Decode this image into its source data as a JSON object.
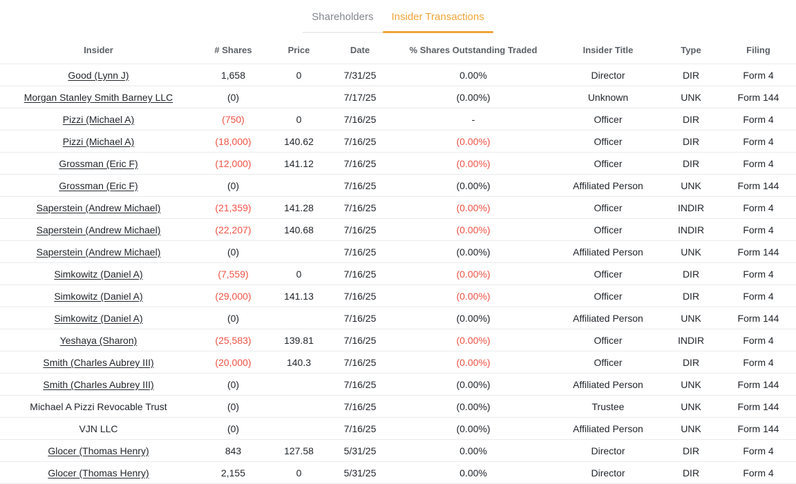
{
  "tabs": [
    {
      "label": "Shareholders",
      "active": false
    },
    {
      "label": "Insider Transactions",
      "active": true
    }
  ],
  "colors": {
    "accent": "#f0a437",
    "negative": "#ee5244"
  },
  "table": {
    "columns": [
      "Insider",
      "# Shares",
      "Price",
      "Date",
      "% Shares Outstanding Traded",
      "Insider Title",
      "Type",
      "Filing"
    ],
    "rows": [
      {
        "insider": "Good (Lynn J)",
        "link": true,
        "shares": "1,658",
        "shares_neg": false,
        "price": "0",
        "date": "7/31/25",
        "pct": "0.00%",
        "pct_neg": false,
        "title": "Director",
        "type": "DIR",
        "filing": "Form 4"
      },
      {
        "insider": "Morgan Stanley Smith Barney LLC",
        "link": true,
        "shares": "(0)",
        "shares_neg": false,
        "price": "",
        "date": "7/17/25",
        "pct": "(0.00%)",
        "pct_neg": false,
        "title": "Unknown",
        "type": "UNK",
        "filing": "Form 144"
      },
      {
        "insider": "Pizzi (Michael A)",
        "link": true,
        "shares": "(750)",
        "shares_neg": true,
        "price": "0",
        "date": "7/16/25",
        "pct": "-",
        "pct_neg": false,
        "title": "Officer",
        "type": "DIR",
        "filing": "Form 4"
      },
      {
        "insider": "Pizzi (Michael A)",
        "link": true,
        "shares": "(18,000)",
        "shares_neg": true,
        "price": "140.62",
        "date": "7/16/25",
        "pct": "(0.00%)",
        "pct_neg": true,
        "title": "Officer",
        "type": "DIR",
        "filing": "Form 4"
      },
      {
        "insider": "Grossman (Eric F)",
        "link": true,
        "shares": "(12,000)",
        "shares_neg": true,
        "price": "141.12",
        "date": "7/16/25",
        "pct": "(0.00%)",
        "pct_neg": true,
        "title": "Officer",
        "type": "DIR",
        "filing": "Form 4"
      },
      {
        "insider": "Grossman (Eric F)",
        "link": true,
        "shares": "(0)",
        "shares_neg": false,
        "price": "",
        "date": "7/16/25",
        "pct": "(0.00%)",
        "pct_neg": false,
        "title": "Affiliated Person",
        "type": "UNK",
        "filing": "Form 144"
      },
      {
        "insider": "Saperstein (Andrew Michael)",
        "link": true,
        "shares": "(21,359)",
        "shares_neg": true,
        "price": "141.28",
        "date": "7/16/25",
        "pct": "(0.00%)",
        "pct_neg": true,
        "title": "Officer",
        "type": "INDIR",
        "filing": "Form 4"
      },
      {
        "insider": "Saperstein (Andrew Michael)",
        "link": true,
        "shares": "(22,207)",
        "shares_neg": true,
        "price": "140.68",
        "date": "7/16/25",
        "pct": "(0.00%)",
        "pct_neg": true,
        "title": "Officer",
        "type": "INDIR",
        "filing": "Form 4"
      },
      {
        "insider": "Saperstein (Andrew Michael)",
        "link": true,
        "shares": "(0)",
        "shares_neg": false,
        "price": "",
        "date": "7/16/25",
        "pct": "(0.00%)",
        "pct_neg": false,
        "title": "Affiliated Person",
        "type": "UNK",
        "filing": "Form 144"
      },
      {
        "insider": "Simkowitz (Daniel A)",
        "link": true,
        "shares": "(7,559)",
        "shares_neg": true,
        "price": "0",
        "date": "7/16/25",
        "pct": "(0.00%)",
        "pct_neg": true,
        "title": "Officer",
        "type": "DIR",
        "filing": "Form 4"
      },
      {
        "insider": "Simkowitz (Daniel A)",
        "link": true,
        "shares": "(29,000)",
        "shares_neg": true,
        "price": "141.13",
        "date": "7/16/25",
        "pct": "(0.00%)",
        "pct_neg": true,
        "title": "Officer",
        "type": "DIR",
        "filing": "Form 4"
      },
      {
        "insider": "Simkowitz (Daniel A)",
        "link": true,
        "shares": "(0)",
        "shares_neg": false,
        "price": "",
        "date": "7/16/25",
        "pct": "(0.00%)",
        "pct_neg": false,
        "title": "Affiliated Person",
        "type": "UNK",
        "filing": "Form 144"
      },
      {
        "insider": "Yeshaya (Sharon)",
        "link": true,
        "shares": "(25,583)",
        "shares_neg": true,
        "price": "139.81",
        "date": "7/16/25",
        "pct": "(0.00%)",
        "pct_neg": true,
        "title": "Officer",
        "type": "INDIR",
        "filing": "Form 4"
      },
      {
        "insider": "Smith (Charles Aubrey III)",
        "link": true,
        "shares": "(20,000)",
        "shares_neg": true,
        "price": "140.3",
        "date": "7/16/25",
        "pct": "(0.00%)",
        "pct_neg": true,
        "title": "Officer",
        "type": "DIR",
        "filing": "Form 4"
      },
      {
        "insider": "Smith (Charles Aubrey III)",
        "link": true,
        "shares": "(0)",
        "shares_neg": false,
        "price": "",
        "date": "7/16/25",
        "pct": "(0.00%)",
        "pct_neg": false,
        "title": "Affiliated Person",
        "type": "UNK",
        "filing": "Form 144"
      },
      {
        "insider": "Michael A Pizzi Revocable Trust",
        "link": false,
        "shares": "(0)",
        "shares_neg": false,
        "price": "",
        "date": "7/16/25",
        "pct": "(0.00%)",
        "pct_neg": false,
        "title": "Trustee",
        "type": "UNK",
        "filing": "Form 144"
      },
      {
        "insider": "VJN LLC",
        "link": false,
        "shares": "(0)",
        "shares_neg": false,
        "price": "",
        "date": "7/16/25",
        "pct": "(0.00%)",
        "pct_neg": false,
        "title": "Affiliated Person",
        "type": "UNK",
        "filing": "Form 144"
      },
      {
        "insider": "Glocer (Thomas Henry)",
        "link": true,
        "shares": "843",
        "shares_neg": false,
        "price": "127.58",
        "date": "5/31/25",
        "pct": "0.00%",
        "pct_neg": false,
        "title": "Director",
        "type": "DIR",
        "filing": "Form 4"
      },
      {
        "insider": "Glocer (Thomas Henry)",
        "link": true,
        "shares": "2,155",
        "shares_neg": false,
        "price": "0",
        "date": "5/31/25",
        "pct": "0.00%",
        "pct_neg": false,
        "title": "Director",
        "type": "DIR",
        "filing": "Form 4"
      }
    ]
  }
}
